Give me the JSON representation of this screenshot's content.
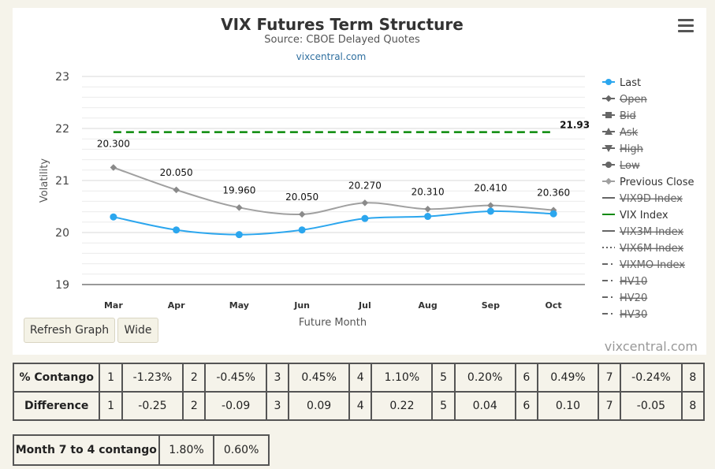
{
  "chart": {
    "title": "VIX Futures Term Structure",
    "subtitle": "Source: CBOE Delayed Quotes",
    "link": "vixcentral.com",
    "credit": "vixcentral.com",
    "menu_icon": "hamburger-icon"
  },
  "buttons": {
    "refresh": "Refresh Graph",
    "wide": "Wide"
  },
  "chart_data": {
    "type": "line",
    "xlabel": "Future Month",
    "ylabel": "Volatility",
    "ylim": [
      19,
      23
    ],
    "yticks": [
      "19",
      "20",
      "21",
      "22",
      "23"
    ],
    "categories": [
      "Mar",
      "Apr",
      "May",
      "Jun",
      "Jul",
      "Aug",
      "Sep",
      "Oct"
    ],
    "series": [
      {
        "name": "Last",
        "color": "#2ba6ee",
        "values": [
          20.3,
          20.05,
          19.96,
          20.05,
          20.27,
          20.31,
          20.41,
          20.36
        ],
        "labels": [
          "20.300",
          "20.050",
          "19.960",
          "20.050",
          "20.270",
          "20.310",
          "20.410",
          "20.360"
        ]
      },
      {
        "name": "Previous Close",
        "color": "#a0a0a0",
        "values": [
          21.25,
          20.82,
          20.48,
          20.35,
          20.57,
          20.45,
          20.52,
          20.43
        ]
      },
      {
        "name": "VIX Index",
        "color": "#0a8a0a",
        "values": [
          21.93,
          21.93,
          21.93,
          21.93,
          21.93,
          21.93,
          21.93,
          21.93
        ],
        "end_label": "21.93"
      }
    ],
    "grid": true,
    "legend_position": "right",
    "legend": [
      {
        "label": "Last",
        "marker": "circle",
        "active": true,
        "color": "#2ba6ee"
      },
      {
        "label": "Open",
        "marker": "diamond",
        "active": false
      },
      {
        "label": "Bid",
        "marker": "square",
        "active": false
      },
      {
        "label": "Ask",
        "marker": "triangle",
        "active": false
      },
      {
        "label": "High",
        "marker": "triangle-down",
        "active": false
      },
      {
        "label": "Low",
        "marker": "circle",
        "active": false
      },
      {
        "label": "Previous Close",
        "marker": "diamond",
        "active": true,
        "color": "#a0a0a0"
      },
      {
        "label": "VIX9D Index",
        "marker": "line",
        "active": false
      },
      {
        "label": "VIX Index",
        "marker": "line",
        "active": true,
        "color": "#0a8a0a"
      },
      {
        "label": "VIX3M Index",
        "marker": "line",
        "active": false
      },
      {
        "label": "VIX6M Index",
        "marker": "dotted",
        "active": false
      },
      {
        "label": "VIXMO Index",
        "marker": "dashdot",
        "active": false
      },
      {
        "label": "HV10",
        "marker": "dashdot",
        "active": false
      },
      {
        "label": "HV20",
        "marker": "dashdot",
        "active": false
      },
      {
        "label": "HV30",
        "marker": "dashdot",
        "active": false
      }
    ]
  },
  "contango_table": {
    "rows": [
      {
        "label": "% Contango",
        "cells": [
          "1",
          "-1.23%",
          "2",
          "-0.45%",
          "3",
          "0.45%",
          "4",
          "1.10%",
          "5",
          "0.20%",
          "6",
          "0.49%",
          "7",
          "-0.24%",
          "8"
        ]
      },
      {
        "label": "Difference",
        "cells": [
          "1",
          "-0.25",
          "2",
          "-0.09",
          "3",
          "0.09",
          "4",
          "0.22",
          "5",
          "0.04",
          "6",
          "0.10",
          "7",
          "-0.05",
          "8"
        ]
      }
    ]
  },
  "month_table": {
    "label": "Month 7 to 4 contango",
    "values": [
      "1.80%",
      "0.60%"
    ]
  }
}
